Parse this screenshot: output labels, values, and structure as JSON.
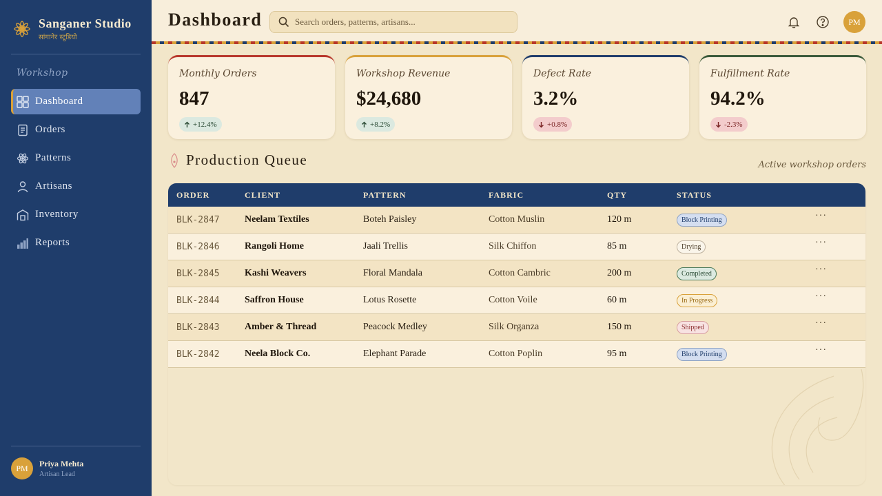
{
  "sidebar": {
    "brand_name": "Sanganer Studio",
    "brand_sub": "सांगानेर स्टूडियो",
    "section_label": "Workshop",
    "items": [
      {
        "label": "Dashboard",
        "icon": "grid-icon"
      },
      {
        "label": "Orders",
        "icon": "document-icon"
      },
      {
        "label": "Patterns",
        "icon": "atom-icon"
      },
      {
        "label": "Artisans",
        "icon": "person-icon"
      },
      {
        "label": "Inventory",
        "icon": "warehouse-icon"
      },
      {
        "label": "Reports",
        "icon": "bar-chart-icon"
      }
    ],
    "active_item": "Dashboard",
    "user": {
      "initials": "PM",
      "name": "Priya Mehta",
      "role": "Artisan Lead"
    }
  },
  "header": {
    "title": "Dashboard",
    "search_placeholder": "Search orders, patterns, artisans...",
    "avatar_initials": "PM"
  },
  "stats": [
    {
      "label": "Monthly Orders",
      "value": "847",
      "change": "+12.4%",
      "direction": "up",
      "accent": "#b8372b"
    },
    {
      "label": "Workshop Revenue",
      "value": "$24,680",
      "change": "+8.2%",
      "direction": "up",
      "accent": "#d9a13a"
    },
    {
      "label": "Defect Rate",
      "value": "3.2%",
      "change": "+0.8%",
      "direction": "down",
      "accent": "#1f3d6b"
    },
    {
      "label": "Fulfillment Rate",
      "value": "94.2%",
      "change": "-2.3%",
      "direction": "down",
      "accent": "#3a5a3a"
    }
  ],
  "queue": {
    "title": "Production Queue",
    "subtitle": "Active workshop orders",
    "columns": [
      "ORDER",
      "CLIENT",
      "PATTERN",
      "FABRIC",
      "QTY",
      "STATUS"
    ],
    "rows": [
      {
        "order": "BLK-2847",
        "client": "Neelam Textiles",
        "pattern": "Boteh Paisley",
        "fabric": "Cotton Muslin",
        "qty": "120 m",
        "status": "Block Printing",
        "status_kind": "block"
      },
      {
        "order": "BLK-2846",
        "client": "Rangoli Home",
        "pattern": "Jaali Trellis",
        "fabric": "Silk Chiffon",
        "qty": "85 m",
        "status": "Drying",
        "status_kind": "dry"
      },
      {
        "order": "BLK-2845",
        "client": "Kashi Weavers",
        "pattern": "Floral Mandala",
        "fabric": "Cotton Cambric",
        "qty": "200 m",
        "status": "Completed",
        "status_kind": "done"
      },
      {
        "order": "BLK-2844",
        "client": "Saffron House",
        "pattern": "Lotus Rosette",
        "fabric": "Cotton Voile",
        "qty": "60 m",
        "status": "In Progress",
        "status_kind": "prog"
      },
      {
        "order": "BLK-2843",
        "client": "Amber & Thread",
        "pattern": "Peacock Medley",
        "fabric": "Silk Organza",
        "qty": "150 m",
        "status": "Shipped",
        "status_kind": "ship"
      },
      {
        "order": "BLK-2842",
        "client": "Neela Block Co.",
        "pattern": "Elephant Parade",
        "fabric": "Cotton Poplin",
        "qty": "95 m",
        "status": "Block Printing",
        "status_kind": "block"
      }
    ],
    "more_label": "···"
  },
  "colors": {
    "sidebar_bg": "#1f3d6b",
    "accent_gold": "#d9a13a",
    "accent_red": "#b8372b",
    "page_bg": "#f2e6c9"
  }
}
